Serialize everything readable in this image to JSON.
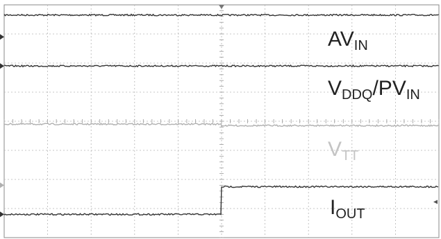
{
  "chart_data": {
    "type": "line",
    "title": "",
    "xlabel": "",
    "ylabel": "",
    "grid": true,
    "grid_divisions": {
      "x": 10,
      "y": 8
    },
    "xlim": [
      0,
      10
    ],
    "ylim": [
      0,
      8
    ],
    "legend": "none",
    "series": [
      {
        "name": "AV_IN",
        "label_main": "AV",
        "label_sub": "IN",
        "color": "#333333",
        "marker_level": 6.9,
        "x": [
          0,
          10
        ],
        "y": [
          7.65,
          7.65
        ]
      },
      {
        "name": "V_DDQ/PV_IN",
        "label_parts": [
          {
            "text": "V",
            "sub": false
          },
          {
            "text": "DDQ",
            "sub": true
          },
          {
            "text": "/PV",
            "sub": false
          },
          {
            "text": "IN",
            "sub": true
          }
        ],
        "color": "#333333",
        "marker_level": 5.9,
        "x": [
          0,
          10
        ],
        "y": [
          5.9,
          5.9
        ]
      },
      {
        "name": "V_TT",
        "label_main": "V",
        "label_sub": "TT",
        "color": "#b0b0b0",
        "marker_level": 1.8,
        "x": [
          0,
          5,
          5,
          10
        ],
        "y": [
          3.9,
          3.9,
          3.85,
          3.85
        ]
      },
      {
        "name": "I_OUT",
        "label_main": "I",
        "label_sub": "OUT",
        "color": "#333333",
        "marker_level": 0.8,
        "x": [
          0,
          5,
          5,
          10
        ],
        "y": [
          0.8,
          0.8,
          1.75,
          1.75
        ]
      }
    ]
  }
}
